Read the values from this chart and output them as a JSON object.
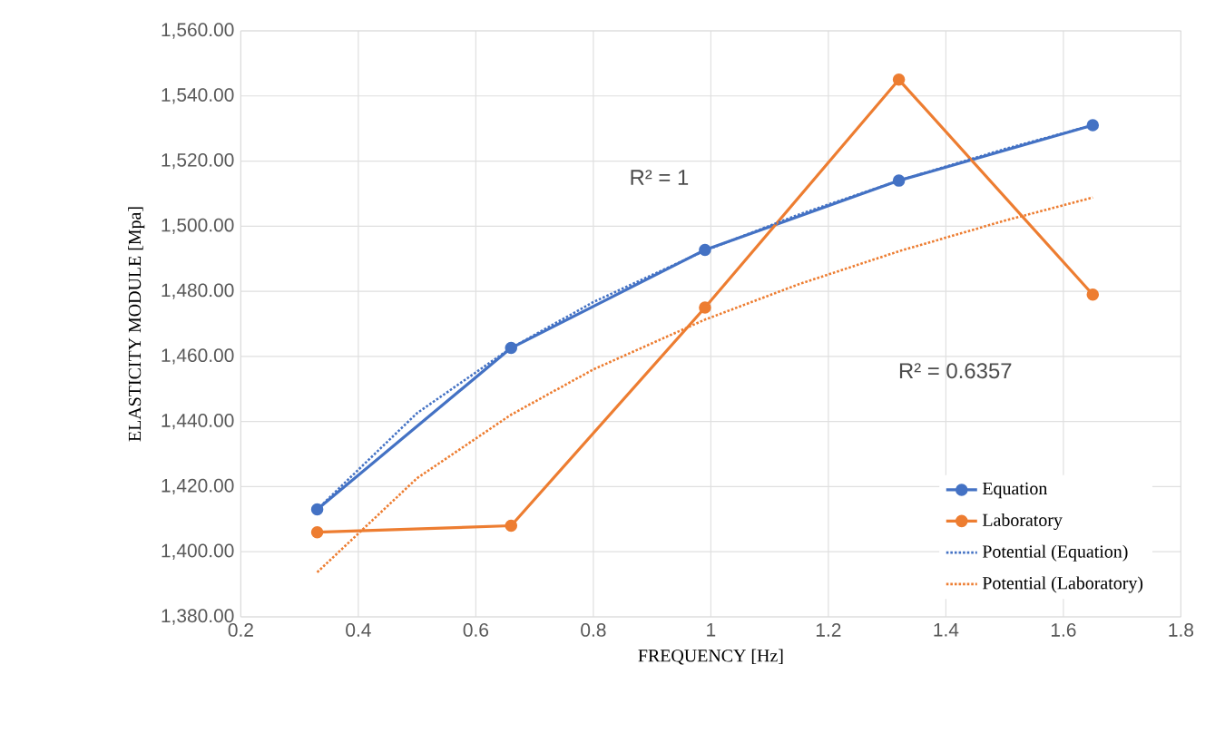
{
  "chart_data": {
    "type": "line",
    "xlabel": "FREQUENCY [Hz]",
    "ylabel": "ELASTICITY  MODULE [Mpa]",
    "xlim": [
      0.2,
      1.8
    ],
    "xticks": [
      0.2,
      0.4,
      0.6,
      0.8,
      1,
      1.2,
      1.4,
      1.6,
      1.8
    ],
    "ylim": [
      1380,
      1560
    ],
    "yticks": [
      {
        "value": 1380,
        "label": "1,380.00"
      },
      {
        "value": 1400,
        "label": "1,400.00"
      },
      {
        "value": 1420,
        "label": "1,420.00"
      },
      {
        "value": 1440,
        "label": "1,440.00"
      },
      {
        "value": 1460,
        "label": "1,460.00"
      },
      {
        "value": 1480,
        "label": "1,480.00"
      },
      {
        "value": 1500,
        "label": "1,500.00"
      },
      {
        "value": 1520,
        "label": "1,520.00"
      },
      {
        "value": 1540,
        "label": "1,540.00"
      },
      {
        "value": 1560,
        "label": "1,560.00"
      }
    ],
    "grid": true,
    "legend": "bottom right",
    "series": [
      {
        "name": "Equation",
        "color": "#4472c4",
        "marker": "circle",
        "line_style": "solid",
        "x": [
          0.33,
          0.66,
          0.99,
          1.32,
          1.65
        ],
        "values": [
          1413,
          1462.6,
          1492.7,
          1514,
          1531
        ]
      },
      {
        "name": "Laboratory",
        "color": "#ed7d31",
        "marker": "circle",
        "line_style": "solid",
        "x": [
          0.33,
          0.66,
          0.99,
          1.32,
          1.65
        ],
        "values": [
          1406,
          1408,
          1475,
          1545,
          1479
        ]
      },
      {
        "name": "Potential (Equation)",
        "color": "#4472c4",
        "marker": "none",
        "line_style": "dotted",
        "x": [
          0.33,
          0.5,
          0.66,
          0.8,
          0.99,
          1.15,
          1.32,
          1.5,
          1.65
        ],
        "values": [
          1413,
          1442.6,
          1462.6,
          1476.7,
          1492.5,
          1503.6,
          1514,
          1523.7,
          1531
        ]
      },
      {
        "name": "Potential (Laboratory)",
        "color": "#ed7d31",
        "marker": "none",
        "line_style": "dotted",
        "x": [
          0.33,
          0.5,
          0.66,
          0.8,
          0.99,
          1.15,
          1.32,
          1.5,
          1.65
        ],
        "values": [
          1393.7,
          1422.6,
          1442.1,
          1456,
          1471.3,
          1482.2,
          1492.3,
          1501.7,
          1508.8
        ]
      }
    ],
    "annotations": [
      "R² = 1",
      "R² = 0.6357"
    ]
  }
}
